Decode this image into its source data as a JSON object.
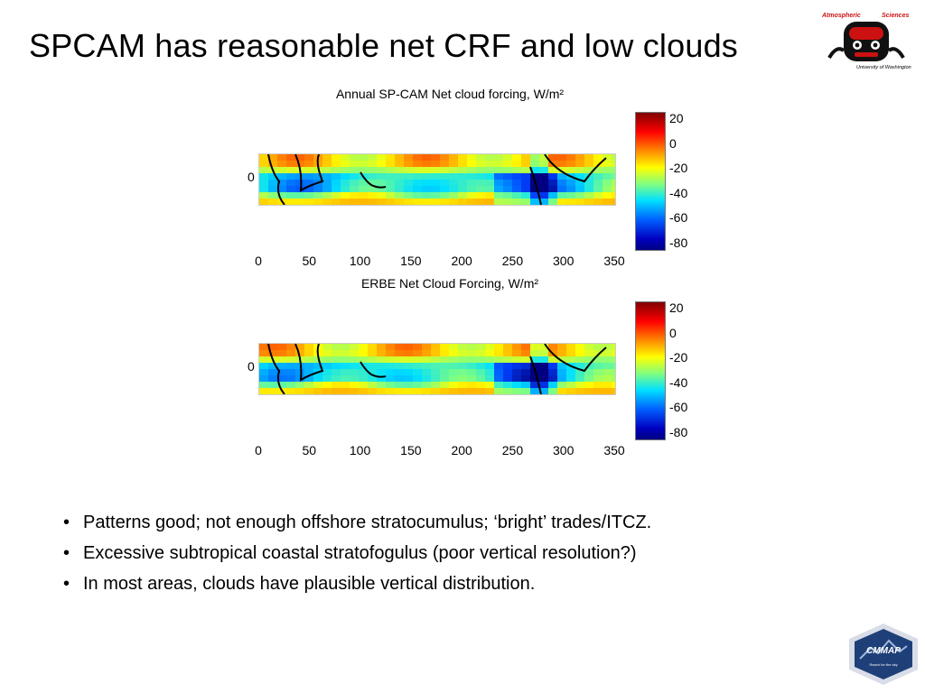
{
  "slide": {
    "title": "SPCAM has reasonable net CRF and low clouds",
    "bullets": [
      "Patterns good; not enough offshore stratocumulus; ‘bright’ trades/ITCZ.",
      "Excessive subtropical coastal stratofogulus (poor vertical resolution?)",
      "In most areas, clouds have plausible vertical distribution."
    ]
  },
  "logo_uw": {
    "word1": "Atmospheric",
    "word2": "Sciences",
    "university": "University of Washington"
  },
  "logo_cmmap": {
    "label": "CMMAP",
    "tagline": "Reach for the sky"
  },
  "chart_data": [
    {
      "type": "heatmap",
      "title": "Annual SP-CAM Net cloud forcing, W/m²",
      "xticks": [
        "0",
        "50",
        "100",
        "150",
        "200",
        "250",
        "300",
        "350"
      ],
      "yticks": [
        "0"
      ],
      "colorbar_ticks": [
        "20",
        "0",
        "-20",
        "-40",
        "-60",
        "-80"
      ],
      "colorbar_range": [
        -85,
        25
      ],
      "colormap": "jet",
      "colors": {
        "high": "#800000",
        "mid": "#ffff00",
        "low": "#000080"
      }
    },
    {
      "type": "heatmap",
      "title": "ERBE Net Cloud Forcing, W/m²",
      "xticks": [
        "0",
        "50",
        "100",
        "150",
        "200",
        "250",
        "300",
        "350"
      ],
      "yticks": [
        "0"
      ],
      "colorbar_ticks": [
        "20",
        "0",
        "-20",
        "-40",
        "-60",
        "-80"
      ],
      "colorbar_range": [
        -85,
        25
      ],
      "colormap": "jet",
      "colors": {
        "high": "#800000",
        "mid": "#ffff00",
        "low": "#000080"
      }
    }
  ]
}
